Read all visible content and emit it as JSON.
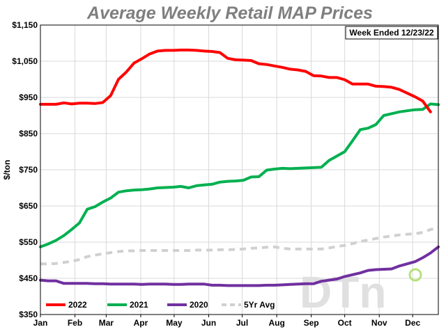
{
  "chart_data": {
    "type": "line",
    "title": "Average Weekly Retail MAP Prices",
    "annotation": "Week Ended 12/23/22",
    "ylabel": "$/ton",
    "xlabel": "",
    "ylim": [
      350,
      1150
    ],
    "xlim": [
      0,
      51
    ],
    "yticks": [
      {
        "value": 350,
        "label": "$350"
      },
      {
        "value": 450,
        "label": "$450"
      },
      {
        "value": 550,
        "label": "$550"
      },
      {
        "value": 650,
        "label": "$650"
      },
      {
        "value": 750,
        "label": "$750"
      },
      {
        "value": 850,
        "label": "$850"
      },
      {
        "value": 950,
        "label": "$950"
      },
      {
        "value": 1050,
        "label": "$1,050"
      },
      {
        "value": 1150,
        "label": "$1,150"
      }
    ],
    "xticks": [
      {
        "week": 0,
        "label": "Jan"
      },
      {
        "week": 4.43,
        "label": "Feb"
      },
      {
        "week": 8.43,
        "label": "Mar"
      },
      {
        "week": 12.86,
        "label": "Apr"
      },
      {
        "week": 17.14,
        "label": "May"
      },
      {
        "week": 21.57,
        "label": "Jun"
      },
      {
        "week": 25.86,
        "label": "Jul"
      },
      {
        "week": 30.29,
        "label": "Aug"
      },
      {
        "week": 34.71,
        "label": "Sep"
      },
      {
        "week": 39,
        "label": "Oct"
      },
      {
        "week": 43.43,
        "label": "Nov"
      },
      {
        "week": 47.71,
        "label": "Dec"
      }
    ],
    "legend_position": "bottom-left",
    "series": [
      {
        "name": "2022",
        "color": "#ff0000",
        "dashed": false,
        "x": [
          0,
          1,
          2,
          3,
          4,
          5,
          6,
          7,
          8,
          9,
          10,
          11,
          12,
          13,
          14,
          15,
          16,
          17,
          18,
          19,
          20,
          21,
          22,
          23,
          24,
          25,
          26,
          27,
          28,
          29,
          30,
          31,
          32,
          33,
          34,
          35,
          36,
          37,
          38,
          39,
          40,
          41,
          42,
          43,
          44,
          45,
          46,
          47,
          48,
          49,
          50
        ],
        "values": [
          931,
          931,
          931,
          935,
          932,
          934,
          934,
          933,
          936,
          955,
          1000,
          1020,
          1045,
          1057,
          1070,
          1078,
          1080,
          1080,
          1081,
          1081,
          1080,
          1078,
          1077,
          1074,
          1058,
          1054,
          1053,
          1052,
          1043,
          1041,
          1037,
          1033,
          1028,
          1026,
          1022,
          1010,
          1009,
          1005,
          1005,
          999,
          987,
          987,
          987,
          981,
          980,
          978,
          972,
          962,
          952,
          940,
          910
        ]
      },
      {
        "name": "2021",
        "color": "#00b050",
        "dashed": false,
        "x": [
          0,
          1,
          2,
          3,
          4,
          5,
          6,
          7,
          8,
          9,
          10,
          11,
          12,
          13,
          14,
          15,
          16,
          17,
          18,
          19,
          20,
          21,
          22,
          23,
          24,
          25,
          26,
          27,
          28,
          29,
          30,
          31,
          32,
          33,
          34,
          35,
          36,
          37,
          38,
          39,
          40,
          41,
          42,
          43,
          44,
          45,
          46,
          47,
          48,
          49,
          50,
          51
        ],
        "values": [
          537,
          545,
          555,
          568,
          585,
          603,
          641,
          648,
          661,
          672,
          688,
          692,
          694,
          695,
          697,
          700,
          701,
          702,
          704,
          700,
          706,
          708,
          710,
          716,
          718,
          719,
          721,
          730,
          731,
          749,
          752,
          754,
          753,
          754,
          755,
          756,
          757,
          776,
          788,
          800,
          830,
          861,
          865,
          875,
          900,
          905,
          910,
          913,
          916,
          917,
          932,
          930
        ]
      },
      {
        "name": "2020",
        "color": "#7030a0",
        "dashed": false,
        "x": [
          0,
          1,
          2,
          3,
          4,
          5,
          6,
          7,
          8,
          9,
          10,
          11,
          12,
          13,
          14,
          15,
          16,
          17,
          18,
          19,
          20,
          21,
          22,
          23,
          24,
          25,
          26,
          27,
          28,
          29,
          30,
          31,
          32,
          33,
          34,
          35,
          36,
          37,
          38,
          39,
          40,
          41,
          42,
          43,
          44,
          45,
          46,
          47,
          48,
          49,
          50,
          51
        ],
        "values": [
          445,
          443,
          443,
          436,
          436,
          436,
          436,
          435,
          435,
          434,
          434,
          434,
          434,
          433,
          434,
          434,
          434,
          433,
          433,
          434,
          434,
          434,
          431,
          431,
          430,
          430,
          430,
          430,
          430,
          431,
          431,
          432,
          433,
          434,
          435,
          435,
          442,
          445,
          448,
          455,
          460,
          465,
          472,
          474,
          475,
          476,
          484,
          490,
          496,
          507,
          520,
          537
        ]
      },
      {
        "name": "5Yr Avg",
        "color": "#d0d0d0",
        "dashed": true,
        "x": [
          0,
          1,
          2,
          3,
          4,
          5,
          6,
          7,
          8,
          9,
          10,
          11,
          12,
          13,
          14,
          15,
          16,
          17,
          18,
          19,
          20,
          21,
          22,
          23,
          24,
          25,
          26,
          27,
          28,
          29,
          30,
          31,
          32,
          33,
          34,
          35,
          36,
          37,
          38,
          39,
          40,
          41,
          42,
          43,
          44,
          45,
          46,
          47,
          48,
          49,
          50,
          51
        ],
        "values": [
          490,
          490,
          491,
          494,
          497,
          502,
          510,
          514,
          518,
          521,
          524,
          526,
          526,
          527,
          527,
          527,
          527,
          527,
          527,
          527,
          528,
          528,
          528,
          529,
          529,
          530,
          531,
          533,
          534,
          536,
          537,
          533,
          531,
          531,
          531,
          531,
          531,
          534,
          538,
          541,
          546,
          552,
          556,
          560,
          564,
          567,
          570,
          572,
          573,
          577,
          585,
          590
        ]
      }
    ]
  },
  "logo": {
    "text": "DTn"
  }
}
